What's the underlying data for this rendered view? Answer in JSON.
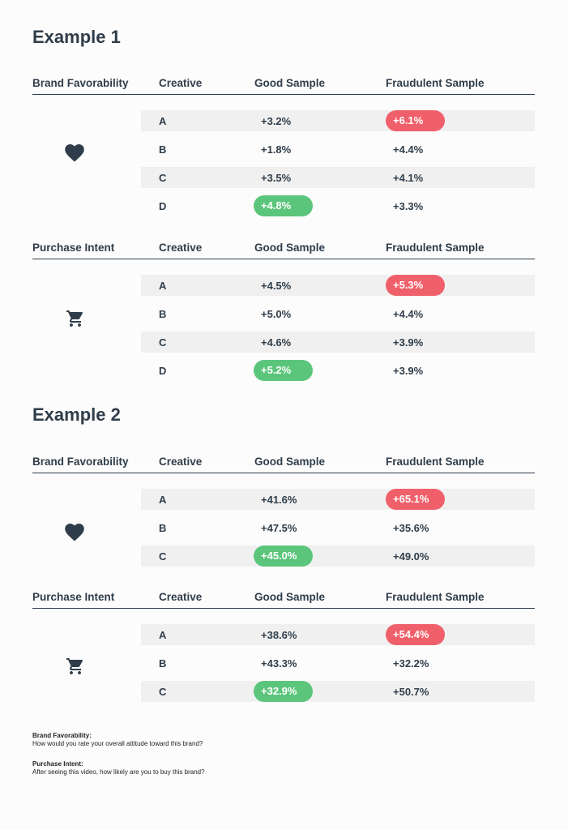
{
  "columns": {
    "creative": "Creative",
    "good": "Good Sample",
    "fraud": "Fraudulent Sample"
  },
  "example1": {
    "title": "Example 1",
    "brand": {
      "metric": "Brand Favorability",
      "rows": [
        {
          "creative": "A",
          "good": "+3.2%",
          "fraud": "+6.1%"
        },
        {
          "creative": "B",
          "good": "+1.8%",
          "fraud": "+4.4%"
        },
        {
          "creative": "C",
          "good": "+3.5%",
          "fraud": "+4.1%"
        },
        {
          "creative": "D",
          "good": "+4.8%",
          "fraud": "+3.3%"
        }
      ]
    },
    "purchase": {
      "metric": "Purchase Intent",
      "rows": [
        {
          "creative": "A",
          "good": "+4.5%",
          "fraud": "+5.3%"
        },
        {
          "creative": "B",
          "good": "+5.0%",
          "fraud": "+4.4%"
        },
        {
          "creative": "C",
          "good": "+4.6%",
          "fraud": "+3.9%"
        },
        {
          "creative": "D",
          "good": "+5.2%",
          "fraud": "+3.9%"
        }
      ]
    }
  },
  "example2": {
    "title": "Example 2",
    "brand": {
      "metric": "Brand Favorability",
      "rows": [
        {
          "creative": "A",
          "good": "+41.6%",
          "fraud": "+65.1%"
        },
        {
          "creative": "B",
          "good": "+47.5%",
          "fraud": "+35.6%"
        },
        {
          "creative": "C",
          "good": "+45.0%",
          "fraud": "+49.0%"
        }
      ]
    },
    "purchase": {
      "metric": "Purchase Intent",
      "rows": [
        {
          "creative": "A",
          "good": "+38.6%",
          "fraud": "+54.4%"
        },
        {
          "creative": "B",
          "good": "+43.3%",
          "fraud": "+32.2%"
        },
        {
          "creative": "C",
          "good": "+32.9%",
          "fraud": "+50.7%"
        }
      ]
    }
  },
  "footnotes": {
    "brand_label": "Brand Favorability:",
    "brand_text": "How would you rate your overall attitude toward this brand?",
    "purchase_label": "Purchase Intent:",
    "purchase_text": "After seeing this video, how likely are you to buy this brand?"
  },
  "colors": {
    "good_pill": "#5cc57c",
    "fraud_pill": "#f0606b",
    "text": "#2f3d4a"
  },
  "icons": {
    "brand": "heart-icon",
    "purchase": "shopping-cart-icon"
  }
}
